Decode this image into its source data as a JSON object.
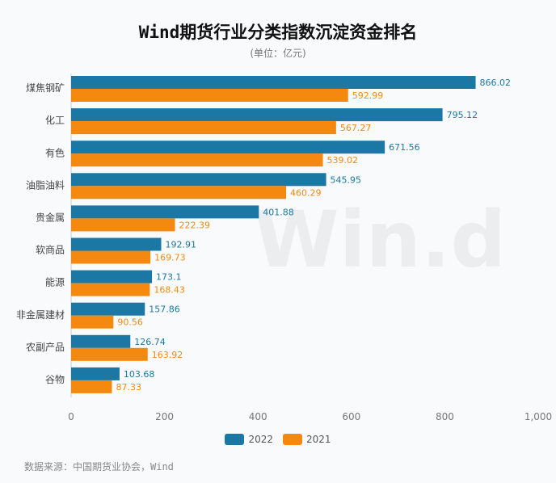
{
  "chart_data": {
    "type": "bar",
    "orientation": "horizontal",
    "title": "Wind期货行业分类指数沉淀资金排名",
    "subtitle": "(单位：亿元)",
    "categories": [
      "煤焦钢矿",
      "化工",
      "有色",
      "油脂油料",
      "贵金属",
      "软商品",
      "能源",
      "非金属建材",
      "农副产品",
      "谷物"
    ],
    "series": [
      {
        "name": "2022",
        "color": "#1b78a5",
        "values": [
          866.02,
          795.12,
          671.56,
          545.95,
          401.88,
          192.91,
          173.1,
          157.86,
          126.74,
          103.68
        ]
      },
      {
        "name": "2021",
        "color": "#f5890f",
        "values": [
          592.99,
          567.27,
          539.02,
          460.29,
          222.39,
          169.73,
          168.43,
          90.56,
          163.92,
          87.33
        ]
      }
    ],
    "data_labels": {
      "2022": [
        "866.02",
        "795.12",
        "671.56",
        "545.95",
        "401.88",
        "192.91",
        "173.1",
        "157.86",
        "126.74",
        "103.68"
      ],
      "2021": [
        "592.99",
        "567.27",
        "539.02",
        "460.29",
        "222.39",
        "169.73",
        "168.43",
        "90.56",
        "163.92",
        "87.33"
      ]
    },
    "xlim": [
      0,
      1000
    ],
    "xticks": [
      "0",
      "200",
      "400",
      "600",
      "800",
      "1,000"
    ],
    "xtick_values": [
      0,
      200,
      400,
      600,
      800,
      1000
    ],
    "grid": false,
    "legend_position": "bottom",
    "watermark": "Win.d",
    "source": "数据来源：中国期货业协会，Wind"
  }
}
